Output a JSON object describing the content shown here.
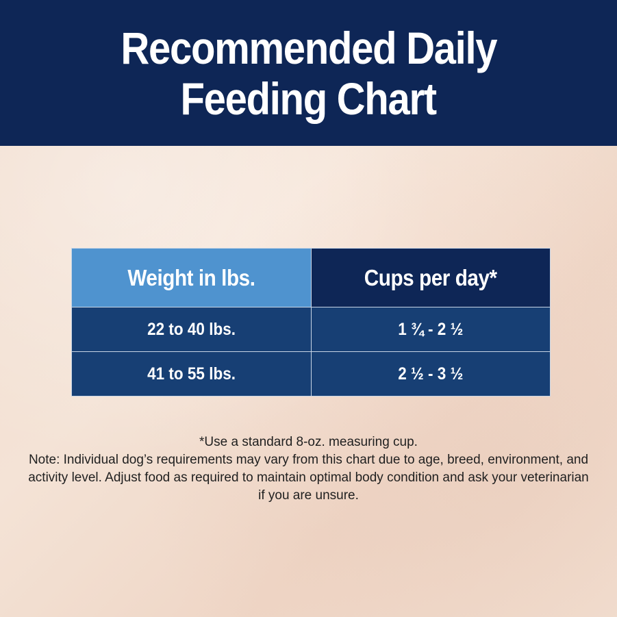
{
  "header": {
    "title_line1": "Recommended Daily",
    "title_line2": "Feeding Chart"
  },
  "table": {
    "columns": [
      "Weight in lbs.",
      "Cups per day*"
    ],
    "rows": [
      [
        "22 to 40 lbs.",
        "1 ¾ - 2 ½"
      ],
      [
        "41 to 55 lbs.",
        "2 ½ - 3 ½"
      ]
    ]
  },
  "notes": {
    "footnote": "*Use a standard 8-oz. measuring cup.",
    "note": "Note: Individual dog’s requirements may vary from this chart due to age, breed, environment, and activity level. Adjust food as required to maintain optimal body condition and ask your veterinarian if you are unsure."
  },
  "colors": {
    "header_navy": "#0e2656",
    "column_light_blue": "#4f93cf",
    "row_blue": "#173f74",
    "background_cream": "#f1dccd"
  }
}
